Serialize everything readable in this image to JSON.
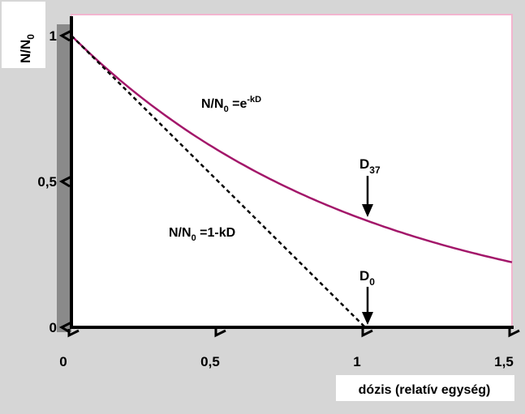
{
  "chart_data": {
    "type": "line",
    "ylabel_main": "N/N",
    "ylabel_sub": "0",
    "xlabel": "dózis (relatív egység)",
    "xlim": [
      0,
      1.5
    ],
    "ylim": [
      0,
      1
    ],
    "x_ticks": [
      {
        "value": 0,
        "label": "0"
      },
      {
        "value": 0.5,
        "label": "0,5"
      },
      {
        "value": 1,
        "label": "1"
      },
      {
        "value": 1.5,
        "label": "1,5"
      }
    ],
    "y_ticks": [
      {
        "value": 0,
        "label": "0"
      },
      {
        "value": 0.5,
        "label": "0,5"
      },
      {
        "value": 1,
        "label": "1"
      }
    ],
    "series": [
      {
        "formula_prefix": "N/N",
        "formula_sub": "0",
        "formula_mid": " =e",
        "formula_sup": "-kD",
        "style": "solid",
        "color": "#a3176a",
        "k": 1,
        "x": [
          0,
          0.25,
          0.5,
          0.75,
          1.0,
          1.25,
          1.5
        ],
        "y": [
          1.0,
          0.779,
          0.607,
          0.472,
          0.368,
          0.287,
          0.223
        ]
      },
      {
        "formula_prefix": "N/N",
        "formula_sub": "0",
        "formula_mid": " =1-kD",
        "style": "dashed",
        "color": "#000000",
        "x": [
          0,
          1
        ],
        "y": [
          1,
          0
        ]
      }
    ],
    "annotations": [
      {
        "main": "D",
        "sub": "37",
        "x": 1,
        "y": 0.368
      },
      {
        "main": "D",
        "sub": "0",
        "x": 1,
        "y": 0
      }
    ],
    "colors": {
      "background": "#d6d6d6",
      "plot_background": "#ffffff",
      "plot_border": "#f2b5cf",
      "axis": "#000000",
      "shadow": "#888888"
    }
  }
}
